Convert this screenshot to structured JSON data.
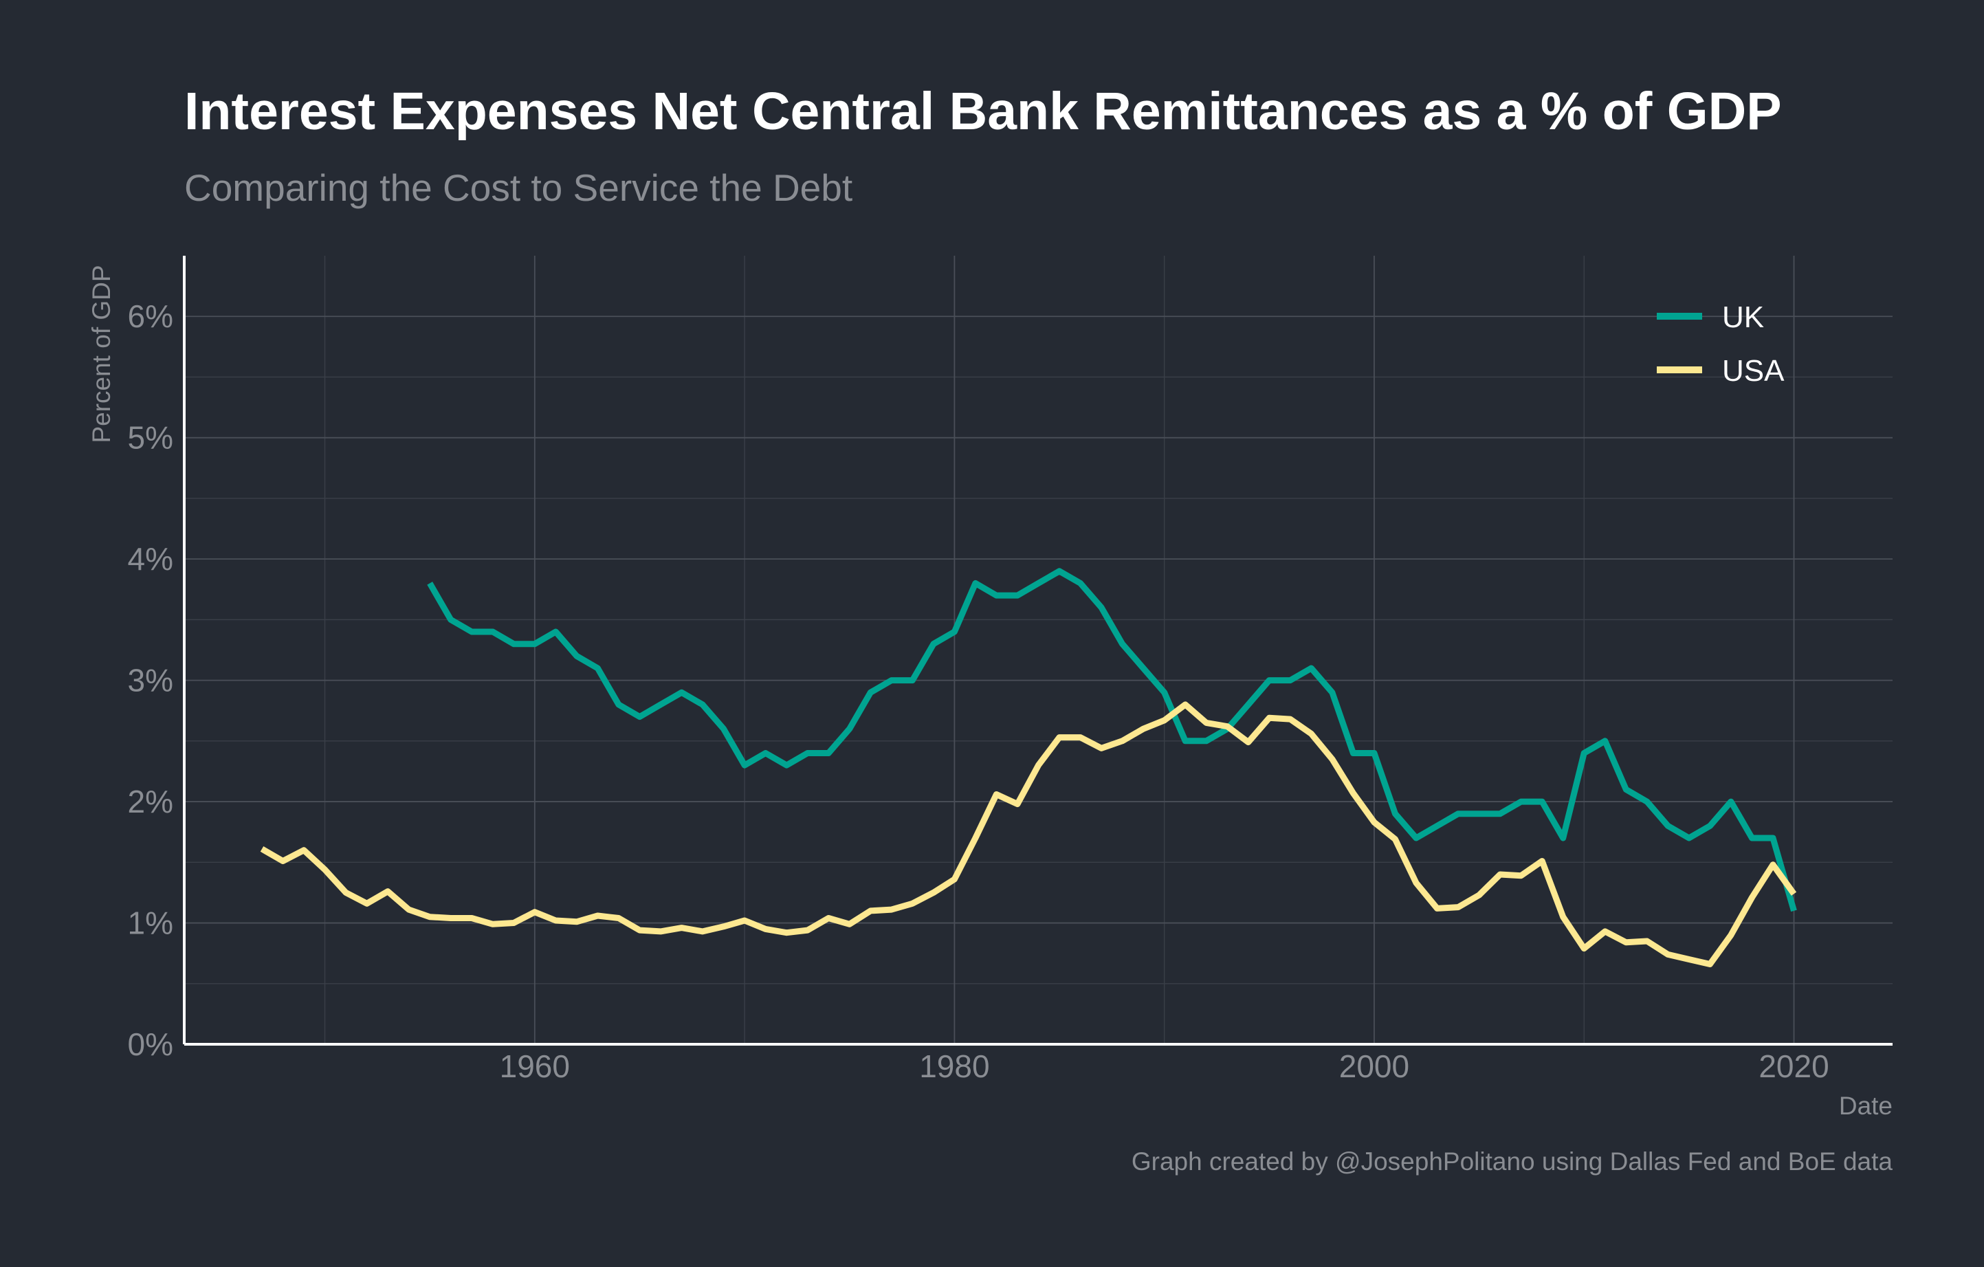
{
  "colors": {
    "background": "#252a33",
    "uk": "#00a491",
    "usa": "#fde891",
    "text_muted": "#8a8d93",
    "text_bright": "#ffffff"
  },
  "chart_data": {
    "type": "line",
    "title": "Interest Expenses Net Central Bank Remittances as a % of GDP",
    "subtitle": "Comparing the Cost to Service the Debt",
    "xlabel": "Date",
    "ylabel": "Percent of GDP",
    "caption": "Graph created by @JosephPolitano using Dallas Fed and BoE data",
    "xlim": [
      1943.3,
      2024.7
    ],
    "ylim": [
      0,
      6.5
    ],
    "x_ticks": [
      1960,
      1980,
      2000,
      2020
    ],
    "x_tick_labels": [
      "1960",
      "1980",
      "2000",
      "2020"
    ],
    "y_ticks": [
      0,
      1,
      2,
      3,
      4,
      5,
      6
    ],
    "y_tick_labels": [
      "0%",
      "1%",
      "2%",
      "3%",
      "4%",
      "5%",
      "6%"
    ],
    "grid": true,
    "legend_position": "top-right",
    "series": [
      {
        "name": "UK",
        "color": "#00a491",
        "x": [
          1955,
          1956,
          1957,
          1958,
          1959,
          1960,
          1961,
          1962,
          1963,
          1964,
          1965,
          1966,
          1967,
          1968,
          1969,
          1970,
          1971,
          1972,
          1973,
          1974,
          1975,
          1976,
          1977,
          1978,
          1979,
          1980,
          1981,
          1982,
          1983,
          1984,
          1985,
          1986,
          1987,
          1988,
          1989,
          1990,
          1991,
          1992,
          1993,
          1994,
          1995,
          1996,
          1997,
          1998,
          1999,
          2000,
          2001,
          2002,
          2003,
          2004,
          2005,
          2006,
          2007,
          2008,
          2009,
          2010,
          2011,
          2012,
          2013,
          2014,
          2015,
          2016,
          2017,
          2018,
          2019,
          2020
        ],
        "y": [
          3.8,
          3.5,
          3.4,
          3.4,
          3.3,
          3.3,
          3.4,
          3.2,
          3.1,
          2.8,
          2.7,
          2.8,
          2.9,
          2.8,
          2.6,
          2.3,
          2.4,
          2.3,
          2.4,
          2.4,
          2.6,
          2.9,
          3.0,
          3.0,
          3.3,
          3.4,
          3.8,
          3.7,
          3.7,
          3.8,
          3.9,
          3.8,
          3.6,
          3.3,
          3.1,
          2.9,
          2.5,
          2.5,
          2.6,
          2.8,
          3.0,
          3.0,
          3.1,
          2.9,
          2.4,
          2.4,
          1.9,
          1.7,
          1.8,
          1.9,
          1.9,
          1.9,
          2.0,
          2.0,
          1.7,
          2.4,
          2.5,
          2.1,
          2.0,
          1.8,
          1.7,
          1.8,
          2.0,
          1.7,
          1.7,
          1.1
        ]
      },
      {
        "name": "USA",
        "color": "#fde891",
        "x": [
          1947,
          1948,
          1949,
          1950,
          1951,
          1952,
          1953,
          1954,
          1955,
          1956,
          1957,
          1958,
          1959,
          1960,
          1961,
          1962,
          1963,
          1964,
          1965,
          1966,
          1967,
          1968,
          1969,
          1970,
          1971,
          1972,
          1973,
          1974,
          1975,
          1976,
          1977,
          1978,
          1979,
          1980,
          1981,
          1982,
          1983,
          1984,
          1985,
          1986,
          1987,
          1988,
          1989,
          1990,
          1991,
          1992,
          1993,
          1994,
          1995,
          1996,
          1997,
          1998,
          1999,
          2000,
          2001,
          2002,
          2003,
          2004,
          2005,
          2006,
          2007,
          2008,
          2009,
          2010,
          2011,
          2012,
          2013,
          2014,
          2015,
          2016,
          2017,
          2018,
          2019,
          2020
        ],
        "y": [
          1.61,
          1.51,
          1.6,
          1.44,
          1.25,
          1.16,
          1.26,
          1.11,
          1.05,
          1.04,
          1.04,
          0.99,
          1.0,
          1.09,
          1.02,
          1.01,
          1.06,
          1.04,
          0.94,
          0.93,
          0.96,
          0.93,
          0.97,
          1.02,
          0.95,
          0.92,
          0.94,
          1.04,
          0.99,
          1.1,
          1.11,
          1.16,
          1.25,
          1.36,
          1.7,
          2.06,
          1.98,
          2.3,
          2.53,
          2.53,
          2.44,
          2.5,
          2.6,
          2.67,
          2.8,
          2.65,
          2.62,
          2.49,
          2.69,
          2.68,
          2.56,
          2.35,
          2.07,
          1.83,
          1.69,
          1.33,
          1.12,
          1.13,
          1.23,
          1.4,
          1.39,
          1.51,
          1.05,
          0.79,
          0.93,
          0.84,
          0.85,
          0.74,
          0.7,
          0.66,
          0.9,
          1.21,
          1.48,
          1.24
        ]
      }
    ]
  }
}
